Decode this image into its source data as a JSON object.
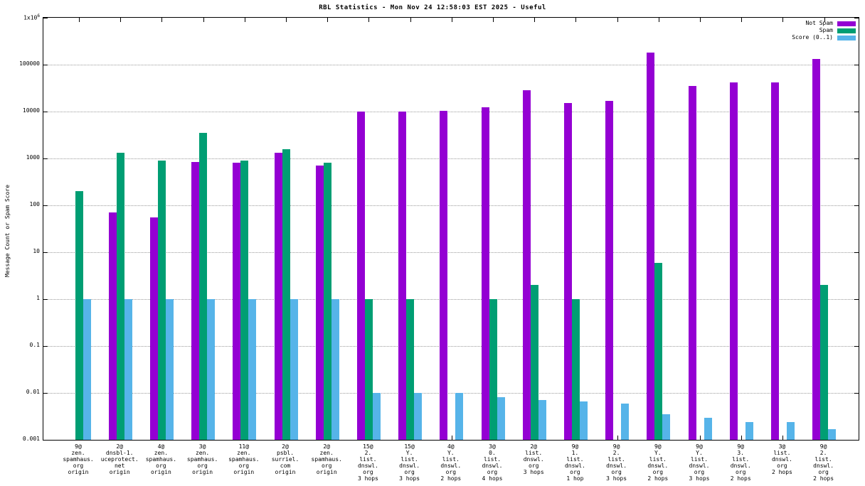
{
  "chart_data": {
    "type": "bar",
    "title": "RBL Statistics - Mon Nov 24 12:58:03 EST 2025 - Useful",
    "ylabel": "Message Count or Spam Score",
    "y_scale": "log",
    "ylim": [
      0.001,
      1000000
    ],
    "y_tick_labels": [
      "1x10^6",
      "100000",
      "10000",
      "1000",
      "100",
      "10",
      "1",
      "0.1",
      "0.01",
      "0.001"
    ],
    "grid": true,
    "legend_position": "top-right",
    "categories": [
      [
        "9@",
        "zen.",
        "spamhaus.",
        "org",
        "origin"
      ],
      [
        "2@",
        "dnsbl-1.",
        "uceprotect.",
        "net",
        "origin"
      ],
      [
        "4@",
        "zen.",
        "spamhaus.",
        "org",
        "origin"
      ],
      [
        "3@",
        "zen.",
        "spamhaus.",
        "org",
        "origin"
      ],
      [
        "11@",
        "zen.",
        "spamhaus.",
        "org",
        "origin"
      ],
      [
        "2@",
        "psbl.",
        "surriel.",
        "com",
        "origin"
      ],
      [
        "2@",
        "zen.",
        "spamhaus.",
        "org",
        "origin"
      ],
      [
        "15@",
        "2.",
        "list.",
        "dnswl.",
        "org",
        "3 hops"
      ],
      [
        "15@",
        "Y.",
        "list.",
        "dnswl.",
        "org",
        "3 hops"
      ],
      [
        "4@",
        "Y.",
        "list.",
        "dnswl.",
        "org",
        "2 hops"
      ],
      [
        "3@",
        "0.",
        "list.",
        "dnswl.",
        "org",
        "4 hops"
      ],
      [
        "2@",
        "list.",
        "dnswl.",
        "org",
        "3 hops"
      ],
      [
        "9@",
        "1.",
        "list.",
        "dnswl.",
        "org",
        "1 hop"
      ],
      [
        "9@",
        "2.",
        "list.",
        "dnswl.",
        "org",
        "3 hops"
      ],
      [
        "9@",
        "Y.",
        "list.",
        "dnswl.",
        "org",
        "2 hops"
      ],
      [
        "9@",
        "Y.",
        "list.",
        "dnswl.",
        "org",
        "3 hops"
      ],
      [
        "9@",
        "3.",
        "list.",
        "dnswl.",
        "org",
        "2 hops"
      ],
      [
        "3@",
        "list.",
        "dnswl.",
        "org",
        "2 hops"
      ],
      [
        "9@",
        "2.",
        "list.",
        "dnswl.",
        "org",
        "2 hops"
      ]
    ],
    "series": [
      {
        "name": "Not Spam",
        "color": "#9400d3",
        "values": [
          null,
          70,
          55,
          850,
          800,
          1300,
          700,
          10000,
          10000,
          10500,
          12500,
          28000,
          15000,
          17000,
          180000,
          35000,
          42000,
          42000,
          130000
        ]
      },
      {
        "name": "Spam",
        "color": "#009e73",
        "values": [
          200,
          1300,
          900,
          3500,
          900,
          1600,
          800,
          1,
          1,
          null,
          1,
          2,
          1,
          null,
          6,
          null,
          null,
          null,
          2
        ]
      },
      {
        "name": "Score (0..1)",
        "color": "#56b4e9",
        "values": [
          1,
          1,
          1,
          1,
          1,
          1,
          1,
          0.01,
          0.01,
          0.01,
          0.008,
          0.007,
          0.0065,
          0.006,
          0.0035,
          0.003,
          0.0024,
          0.0024,
          0.0017
        ]
      }
    ]
  }
}
